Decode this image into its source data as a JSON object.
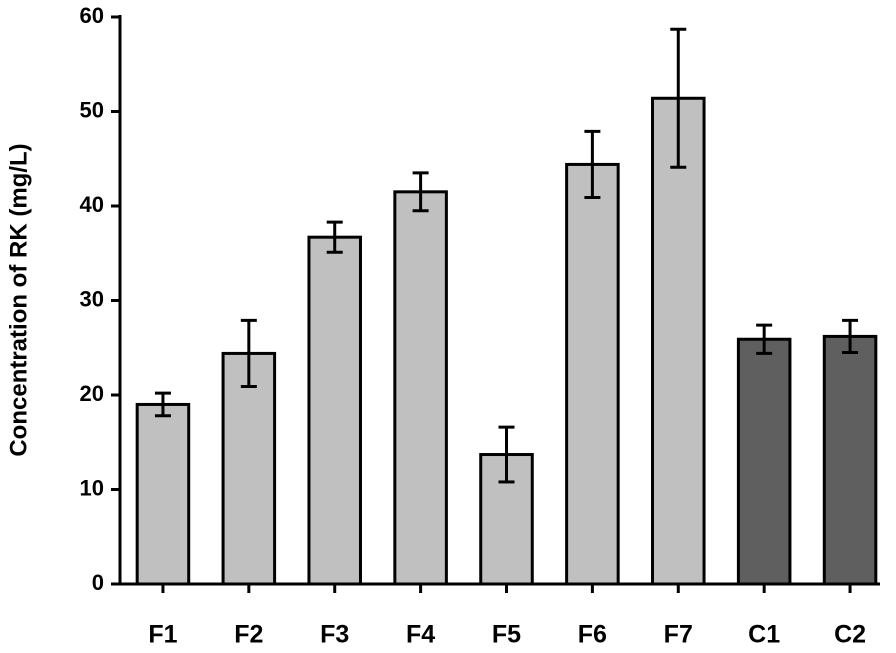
{
  "chart_data": {
    "type": "bar",
    "y_label": "Concentration of RK (mg/L)",
    "categories": [
      "F1",
      "F2",
      "F3",
      "F4",
      "F5",
      "F6",
      "F7",
      "C1",
      "C2"
    ],
    "values": [
      19.0,
      24.4,
      36.7,
      41.5,
      13.7,
      44.4,
      51.4,
      25.9,
      26.2
    ],
    "errors": [
      1.2,
      3.5,
      1.6,
      2.0,
      2.9,
      3.5,
      7.3,
      1.5,
      1.7
    ],
    "colors": [
      "#c0c0c0",
      "#c0c0c0",
      "#c0c0c0",
      "#c0c0c0",
      "#c0c0c0",
      "#c0c0c0",
      "#c0c0c0",
      "#5f5f5f",
      "#5f5f5f"
    ],
    "ylim": [
      0,
      60
    ],
    "yticks": [
      0,
      10,
      20,
      30,
      40,
      50,
      60
    ],
    "grid": false
  }
}
